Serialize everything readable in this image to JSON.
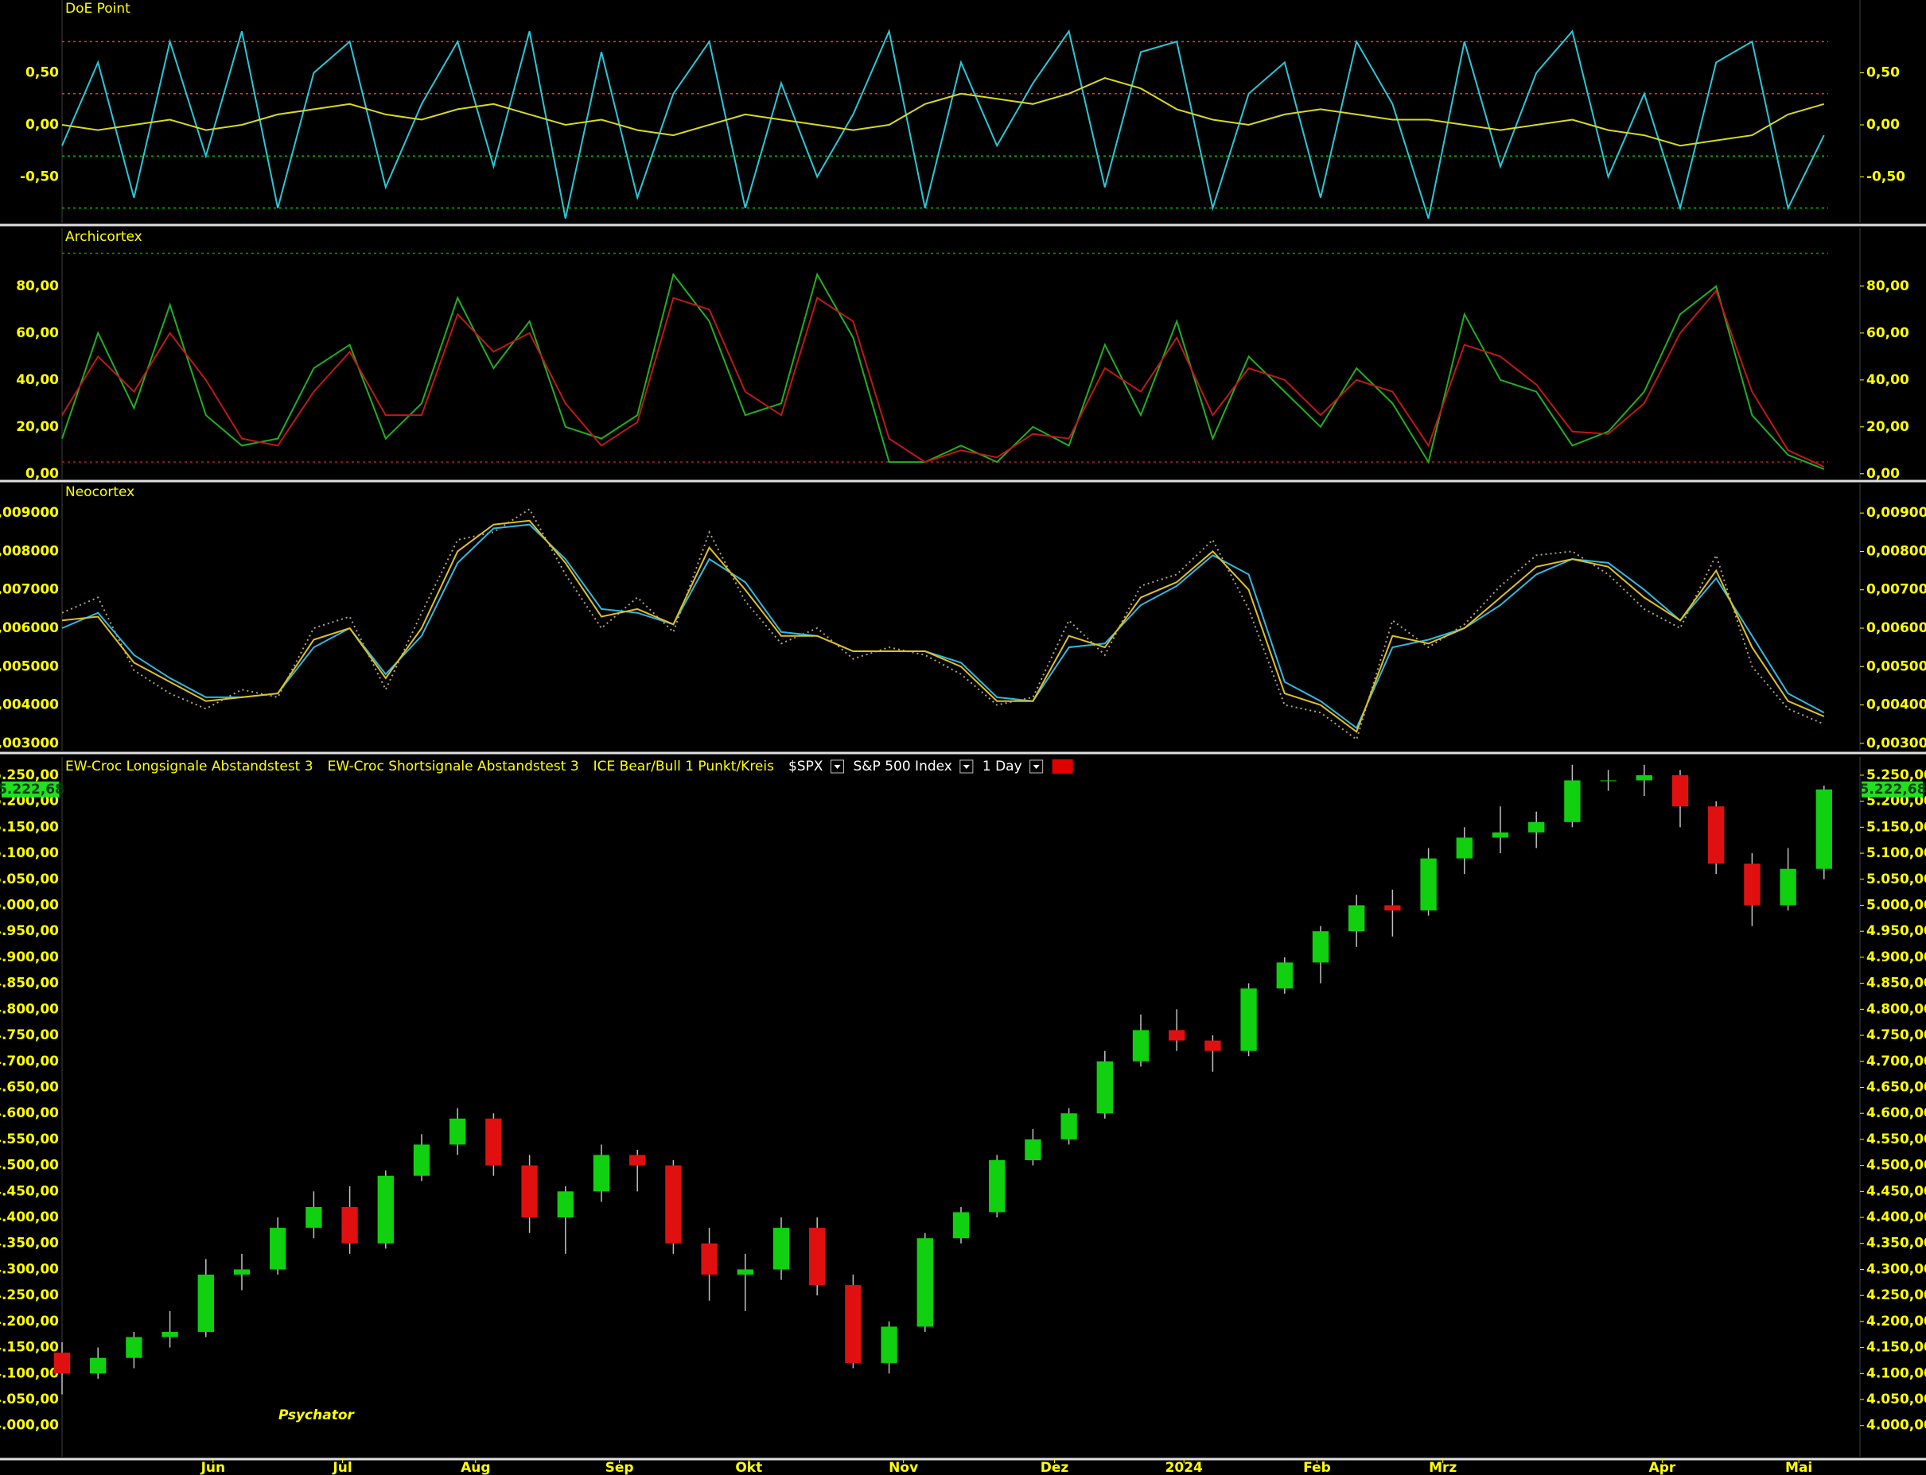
{
  "chart_data": [
    {
      "type": "line",
      "title": "DoE Point",
      "ylim": [
        -0.94,
        1.2
      ],
      "yticks": [
        {
          "value": 0.5,
          "label": "0,50"
        },
        {
          "value": 0,
          "label": "0,00"
        },
        {
          "value": -0.5,
          "label": "-0,50"
        }
      ],
      "hlines": [
        {
          "value": 0.8,
          "color": "#ff3030"
        },
        {
          "value": 0.3,
          "color": "#ff3030"
        },
        {
          "value": -0.3,
          "color": "#00c000"
        },
        {
          "value": -0.8,
          "color": "#00c000"
        }
      ],
      "series": [
        {
          "color": "#28c8d8",
          "values": [
            -0.2,
            0.6,
            -0.7,
            0.8,
            -0.3,
            0.9,
            -0.8,
            0.5,
            0.8,
            -0.6,
            0.2,
            0.8,
            -0.4,
            0.9,
            -0.9,
            0.7,
            -0.7,
            0.3,
            0.8,
            -0.8,
            0.4,
            -0.5,
            0.1,
            0.9,
            -0.8,
            0.6,
            -0.2,
            0.4,
            0.9,
            -0.6,
            0.7,
            0.8,
            -0.8,
            0.3,
            0.6,
            -0.7,
            0.8,
            0.2,
            -0.9,
            0.8,
            -0.4,
            0.5,
            0.9,
            -0.5,
            0.3,
            -0.8,
            0.6,
            0.8,
            -0.8,
            -0.1
          ]
        },
        {
          "color": "#d8d820",
          "values": [
            0.0,
            -0.05,
            0.0,
            0.05,
            -0.05,
            0.0,
            0.1,
            0.15,
            0.2,
            0.1,
            0.05,
            0.15,
            0.2,
            0.1,
            0.0,
            0.05,
            -0.05,
            -0.1,
            0.0,
            0.1,
            0.05,
            0.0,
            -0.05,
            0.0,
            0.2,
            0.3,
            0.25,
            0.2,
            0.3,
            0.45,
            0.35,
            0.15,
            0.05,
            0.0,
            0.1,
            0.15,
            0.1,
            0.05,
            0.05,
            0.0,
            -0.05,
            0.0,
            0.05,
            -0.05,
            -0.1,
            -0.2,
            -0.15,
            -0.1,
            0.1,
            0.2
          ]
        }
      ]
    },
    {
      "type": "line",
      "title": "Archicortex",
      "ylim": [
        -2.1,
        104.7
      ],
      "yticks": [
        {
          "value": 0,
          "label": "0,00"
        },
        {
          "value": 20,
          "label": "20,00"
        },
        {
          "value": 40,
          "label": "40,00"
        },
        {
          "value": 60,
          "label": "60,00"
        },
        {
          "value": 80,
          "label": "80,00"
        }
      ],
      "hlines": [
        {
          "value": 94,
          "color": "#00a000"
        },
        {
          "value": 5,
          "color": "#c01818"
        }
      ],
      "series": [
        {
          "color": "#20b020",
          "values": [
            15,
            60,
            28,
            72,
            25,
            12,
            15,
            45,
            55,
            15,
            30,
            75,
            45,
            65,
            20,
            15,
            25,
            85,
            65,
            25,
            30,
            85,
            58,
            5,
            5,
            12,
            5,
            20,
            12,
            55,
            25,
            65,
            15,
            50,
            35,
            20,
            45,
            30,
            5,
            68,
            40,
            35,
            12,
            18,
            35,
            68,
            80,
            25,
            8,
            2
          ]
        },
        {
          "color": "#c01818",
          "values": [
            25,
            50,
            35,
            60,
            40,
            15,
            12,
            35,
            52,
            25,
            25,
            68,
            52,
            60,
            30,
            12,
            22,
            75,
            70,
            35,
            25,
            75,
            65,
            15,
            5,
            10,
            7,
            17,
            15,
            45,
            35,
            58,
            25,
            45,
            40,
            25,
            40,
            35,
            12,
            55,
            50,
            38,
            18,
            17,
            30,
            60,
            78,
            35,
            10,
            3
          ]
        }
      ]
    },
    {
      "type": "line",
      "title": "Neocortex",
      "ylim": [
        0.00281,
        0.00977
      ],
      "yticks": [
        {
          "value": 0.003,
          "label": "0,003000"
        },
        {
          "value": 0.004,
          "label": "0,004000"
        },
        {
          "value": 0.005,
          "label": "0,005000"
        },
        {
          "value": 0.006,
          "label": "0,006000"
        },
        {
          "value": 0.007,
          "label": "0,007000"
        },
        {
          "value": 0.008,
          "label": "0,008000"
        },
        {
          "value": 0.009,
          "label": "0,009000"
        }
      ],
      "series": [
        {
          "color": "#b0a080",
          "style": "dotted",
          "values": [
            0.0064,
            0.0068,
            0.0049,
            0.0043,
            0.0039,
            0.0044,
            0.0042,
            0.006,
            0.0063,
            0.0044,
            0.0064,
            0.0083,
            0.0085,
            0.0091,
            0.0074,
            0.006,
            0.0068,
            0.0059,
            0.0085,
            0.0067,
            0.0056,
            0.006,
            0.0052,
            0.0055,
            0.0053,
            0.0048,
            0.004,
            0.0042,
            0.0062,
            0.0053,
            0.0071,
            0.0074,
            0.0083,
            0.0065,
            0.004,
            0.0038,
            0.0031,
            0.0062,
            0.0055,
            0.0061,
            0.0071,
            0.0079,
            0.008,
            0.0074,
            0.0065,
            0.006,
            0.0079,
            0.005,
            0.0039,
            0.0035
          ]
        },
        {
          "color": "#30b8e0",
          "values": [
            0.006,
            0.0064,
            0.0053,
            0.0047,
            0.0042,
            0.0042,
            0.0043,
            0.0055,
            0.006,
            0.0048,
            0.0058,
            0.0077,
            0.0086,
            0.0087,
            0.0078,
            0.0065,
            0.0064,
            0.0061,
            0.0078,
            0.0072,
            0.0059,
            0.0058,
            0.0054,
            0.0054,
            0.0054,
            0.0051,
            0.0042,
            0.0041,
            0.0055,
            0.0056,
            0.0066,
            0.0071,
            0.0079,
            0.0074,
            0.0046,
            0.0041,
            0.0034,
            0.0055,
            0.0057,
            0.006,
            0.0066,
            0.0074,
            0.0078,
            0.0077,
            0.007,
            0.0062,
            0.0073,
            0.0058,
            0.0043,
            0.0038
          ]
        },
        {
          "color": "#e0c020",
          "values": [
            0.0062,
            0.0063,
            0.0051,
            0.0046,
            0.0041,
            0.0042,
            0.0043,
            0.0057,
            0.006,
            0.0047,
            0.006,
            0.008,
            0.0087,
            0.0088,
            0.0077,
            0.0063,
            0.0065,
            0.0061,
            0.0081,
            0.007,
            0.0058,
            0.0058,
            0.0054,
            0.0054,
            0.0054,
            0.005,
            0.0041,
            0.0041,
            0.0058,
            0.0055,
            0.0068,
            0.0072,
            0.008,
            0.007,
            0.0043,
            0.004,
            0.0033,
            0.0058,
            0.0056,
            0.006,
            0.0068,
            0.0076,
            0.0078,
            0.0076,
            0.0068,
            0.0062,
            0.0075,
            0.0055,
            0.0041,
            0.0037
          ]
        }
      ]
    },
    {
      "type": "candlestick",
      "indicators": [
        "EW-Croc Longsignale Abstandstest 3",
        "EW-Croc Shortsignale Abstandstest 3",
        "ICE Bear/Bull 1 Punkt/Kreis"
      ],
      "symbol": "$SPX",
      "name": "S&P 500 Index",
      "interval": "1 Day",
      "annotation": "Psychator",
      "up_color": "#10d010",
      "down_color": "#e01010",
      "xlim": [
        0,
        50
      ],
      "xticks": [
        {
          "value": 4.2,
          "label": "Jun"
        },
        {
          "value": 7.8,
          "label": "Jul"
        },
        {
          "value": 11.5,
          "label": "Aug"
        },
        {
          "value": 15.5,
          "label": "Sep"
        },
        {
          "value": 19.1,
          "label": "Okt"
        },
        {
          "value": 23.4,
          "label": "Nov"
        },
        {
          "value": 27.6,
          "label": "Dez"
        },
        {
          "value": 31.2,
          "label": "2024"
        },
        {
          "value": 34.9,
          "label": "Feb"
        },
        {
          "value": 38.4,
          "label": "Mrz"
        },
        {
          "value": 44.5,
          "label": "Apr"
        },
        {
          "value": 48.3,
          "label": "Mai"
        }
      ],
      "ylim": [
        3940,
        5285
      ],
      "yticks": [
        {
          "value": 4000,
          "label": "4.000,00"
        },
        {
          "value": 4050,
          "label": "4.050,00"
        },
        {
          "value": 4100,
          "label": "4.100,00"
        },
        {
          "value": 4150,
          "label": "4.150,00"
        },
        {
          "value": 4200,
          "label": "4.200,00"
        },
        {
          "value": 4250,
          "label": "4.250,00"
        },
        {
          "value": 4300,
          "label": "4.300,00"
        },
        {
          "value": 4350,
          "label": "4.350,00"
        },
        {
          "value": 4400,
          "label": "4.400,00"
        },
        {
          "value": 4450,
          "label": "4.450,00"
        },
        {
          "value": 4500,
          "label": "4.500,00"
        },
        {
          "value": 4550,
          "label": "4.550,00"
        },
        {
          "value": 4600,
          "label": "4.600,00"
        },
        {
          "value": 4650,
          "label": "4.650,00"
        },
        {
          "value": 4700,
          "label": "4.700,00"
        },
        {
          "value": 4750,
          "label": "4.750,00"
        },
        {
          "value": 4800,
          "label": "4.800,00"
        },
        {
          "value": 4850,
          "label": "4.850,00"
        },
        {
          "value": 4900,
          "label": "4.900,00"
        },
        {
          "value": 4950,
          "label": "4.950,00"
        },
        {
          "value": 5000,
          "label": "5.000,00"
        },
        {
          "value": 5050,
          "label": "5.050,00"
        },
        {
          "value": 5100,
          "label": "5.100,00"
        },
        {
          "value": 5150,
          "label": "5.150,00"
        },
        {
          "value": 5200,
          "label": "5.200,00"
        },
        {
          "value": 5250,
          "label": "5.250,00"
        }
      ],
      "last_price": {
        "value": 5222.68,
        "label": "5.222,68"
      },
      "x": [
        0,
        1,
        2,
        3,
        4,
        5,
        6,
        7,
        8,
        9,
        10,
        11,
        12,
        13,
        14,
        15,
        16,
        17,
        18,
        19,
        20,
        21,
        22,
        23,
        24,
        25,
        26,
        27,
        28,
        29,
        30,
        31,
        32,
        33,
        34,
        35,
        36,
        37,
        38,
        39,
        40,
        41,
        42,
        43,
        44,
        45,
        46,
        47,
        48,
        49
      ],
      "open": [
        4140,
        4100,
        4130,
        4170,
        4180,
        4290,
        4300,
        4380,
        4420,
        4350,
        4480,
        4540,
        4590,
        4500,
        4400,
        4450,
        4520,
        4500,
        4350,
        4290,
        4300,
        4380,
        4270,
        4120,
        4190,
        4360,
        4410,
        4510,
        4550,
        4600,
        4700,
        4760,
        4740,
        4720,
        4840,
        4890,
        4950,
        5000,
        4990,
        5090,
        5130,
        5140,
        5160,
        5240,
        5240,
        5250,
        5190,
        5080,
        5000,
        5070
      ],
      "high": [
        4160,
        4150,
        4180,
        4220,
        4320,
        4330,
        4400,
        4450,
        4460,
        4490,
        4560,
        4610,
        4600,
        4520,
        4460,
        4540,
        4530,
        4510,
        4380,
        4330,
        4400,
        4400,
        4290,
        4200,
        4370,
        4420,
        4520,
        4570,
        4610,
        4720,
        4790,
        4800,
        4750,
        4850,
        4900,
        4960,
        5020,
        5030,
        5110,
        5150,
        5190,
        5180,
        5270,
        5260,
        5270,
        5260,
        5200,
        5100,
        5110,
        5230
      ],
      "low": [
        4060,
        4090,
        4110,
        4150,
        4170,
        4260,
        4290,
        4360,
        4330,
        4340,
        4470,
        4520,
        4480,
        4370,
        4330,
        4430,
        4450,
        4330,
        4240,
        4220,
        4280,
        4250,
        4110,
        4100,
        4180,
        4350,
        4400,
        4500,
        4540,
        4590,
        4690,
        4720,
        4680,
        4710,
        4830,
        4850,
        4920,
        4940,
        4980,
        5060,
        5100,
        5110,
        5150,
        5220,
        5210,
        5150,
        5060,
        4960,
        4990,
        5050
      ],
      "close": [
        4100,
        4130,
        4170,
        4180,
        4290,
        4300,
        4380,
        4420,
        4350,
        4480,
        4540,
        4590,
        4500,
        4400,
        4450,
        4520,
        4500,
        4350,
        4290,
        4300,
        4380,
        4270,
        4120,
        4190,
        4360,
        4410,
        4510,
        4550,
        4600,
        4700,
        4760,
        4740,
        4720,
        4840,
        4890,
        4950,
        5000,
        4990,
        5090,
        5130,
        5140,
        5160,
        5240,
        5240,
        5250,
        5190,
        5080,
        5000,
        5070,
        5222.68
      ]
    }
  ]
}
